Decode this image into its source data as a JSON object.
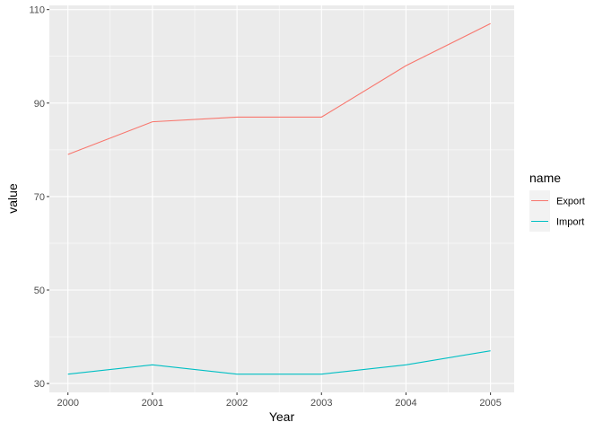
{
  "chart_data": {
    "type": "line",
    "title": "",
    "xlabel": "Year",
    "ylabel": "value",
    "x": [
      2000,
      2001,
      2002,
      2003,
      2004,
      2005
    ],
    "x_tick_labels": [
      "2000",
      "2001",
      "2002",
      "2003",
      "2004",
      "2005"
    ],
    "y_ticks": [
      30,
      50,
      70,
      90,
      110
    ],
    "y_tick_labels": [
      "30",
      "50",
      "70",
      "90",
      "110"
    ],
    "xlim": [
      1999.78,
      2005.28
    ],
    "ylim": [
      28.1,
      110.9
    ],
    "grid": true,
    "legend": {
      "title": "name",
      "position": "right"
    },
    "series": [
      {
        "name": "Export",
        "color": "#F8766D",
        "values": [
          79,
          86,
          87,
          87,
          98,
          107
        ]
      },
      {
        "name": "Import",
        "color": "#00BFC4",
        "values": [
          32,
          34,
          32,
          32,
          34,
          37
        ]
      }
    ]
  }
}
